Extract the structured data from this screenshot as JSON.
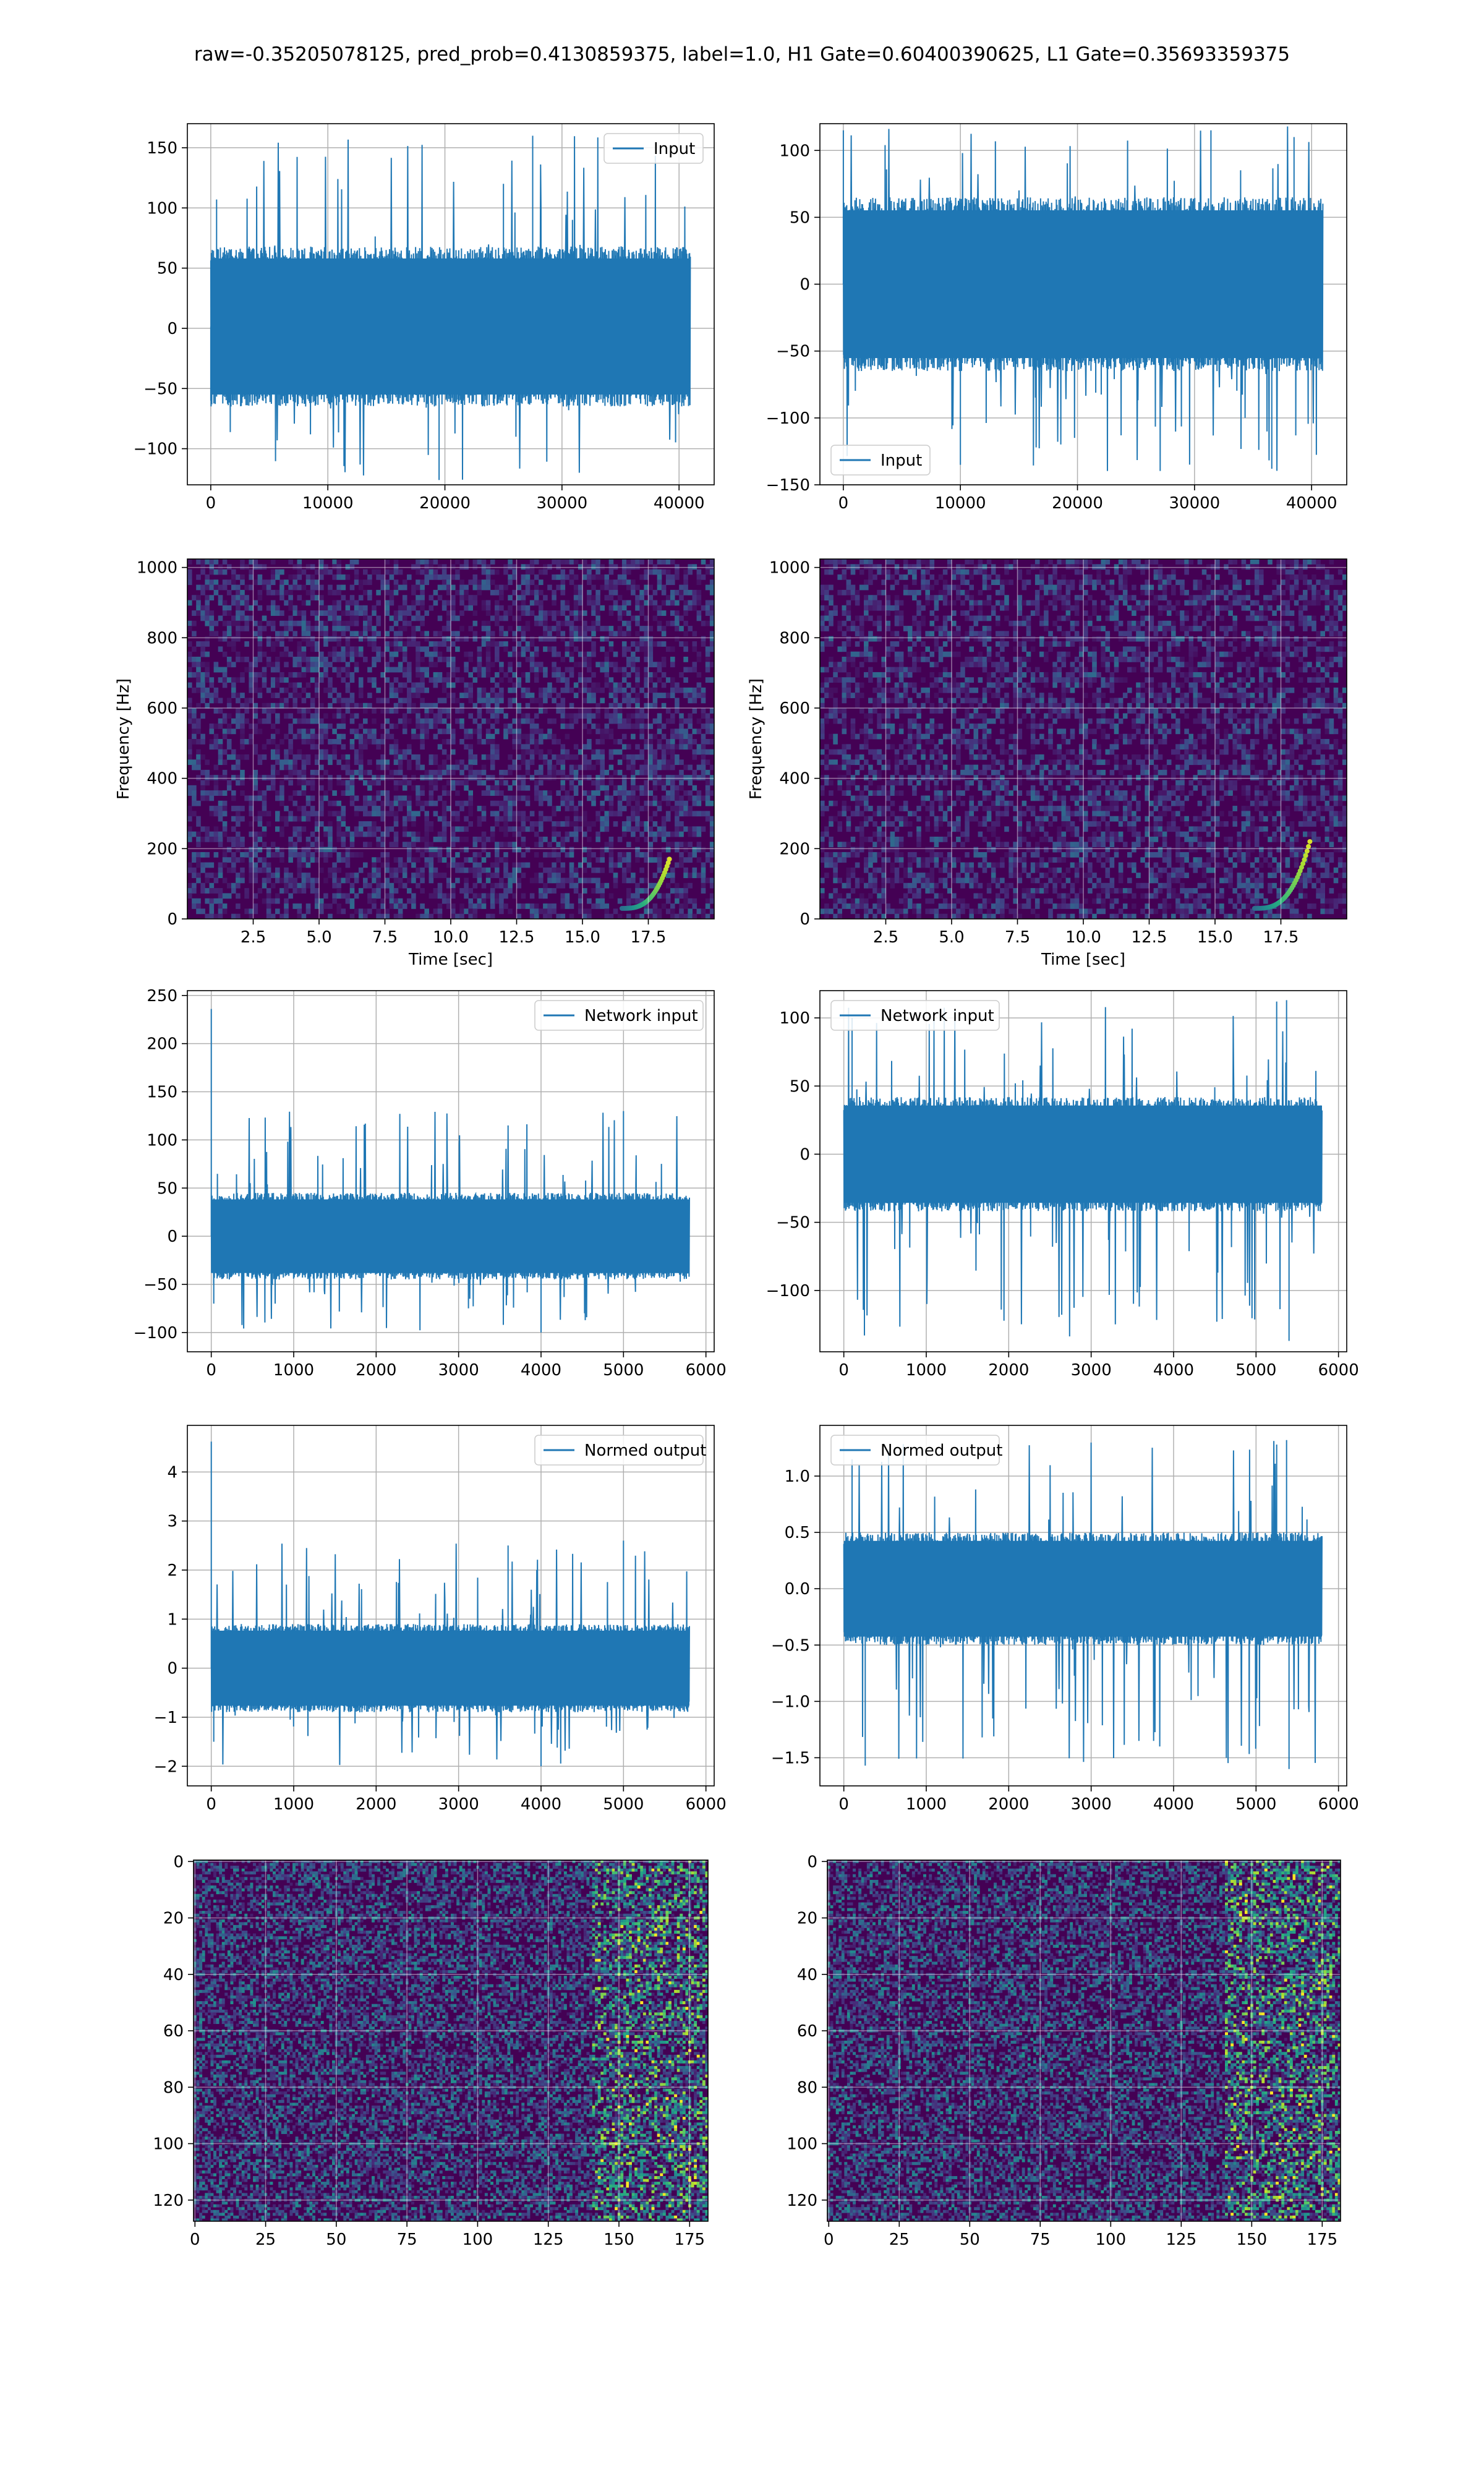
{
  "figure_title": "raw=-0.35205078125, pred_prob=0.4130859375, label=1.0, H1 Gate=0.60400390625, L1 Gate=0.35693359375",
  "colors": {
    "line": "#1f77b4",
    "grid": "#b0b0b0",
    "viridis": [
      "#440154",
      "#472c7a",
      "#3b518b",
      "#2c718e",
      "#21908d",
      "#27ad81",
      "#5cc863",
      "#aadc32",
      "#fde725"
    ]
  },
  "chart_data": [
    {
      "id": "input-h1",
      "type": "line",
      "xlim": [
        -2000,
        43000
      ],
      "ylim": [
        -130,
        170
      ],
      "xticks": [
        0,
        10000,
        20000,
        30000,
        40000
      ],
      "yticks": [
        -100,
        -50,
        0,
        50,
        100,
        150
      ],
      "legend": "Input",
      "legend_placement": "upper-right",
      "grid": true,
      "x_extent": [
        0,
        40960
      ],
      "band": [
        -65,
        68
      ],
      "spike_range": [
        -128,
        160
      ],
      "spikes": [
        [
          27500,
          160
        ],
        [
          19500,
          -126
        ],
        [
          25000,
          120
        ],
        [
          0,
          -60
        ],
        [
          500,
          107
        ]
      ]
    },
    {
      "id": "input-l1",
      "type": "line",
      "xlim": [
        -2000,
        43000
      ],
      "ylim": [
        -150,
        120
      ],
      "xticks": [
        0,
        10000,
        20000,
        30000,
        40000
      ],
      "yticks": [
        -150,
        -100,
        -50,
        0,
        50,
        100
      ],
      "legend": "Input",
      "legend_placement": "lower-left",
      "grid": true,
      "x_extent": [
        0,
        40960
      ],
      "band": [
        -65,
        65
      ],
      "spike_range": [
        -140,
        118
      ],
      "spikes": [
        [
          36600,
          -138
        ],
        [
          31400,
          115
        ],
        [
          10000,
          -135
        ],
        [
          0,
          115
        ],
        [
          38500,
          110
        ]
      ]
    },
    {
      "id": "spectrogram-h1",
      "type": "heatmap",
      "xlim": [
        0,
        20
      ],
      "ylim": [
        0,
        1024
      ],
      "xticks": [
        2.5,
        5.0,
        7.5,
        10.0,
        12.5,
        15.0,
        17.5
      ],
      "yticks": [
        0,
        200,
        400,
        600,
        800,
        1000
      ],
      "xlabel": "Time [sec]",
      "ylabel": "Frequency [Hz]",
      "grid": true,
      "chirp": {
        "t0": 16.5,
        "t1": 18.3,
        "f0": 30,
        "f1": 170
      }
    },
    {
      "id": "spectrogram-l1",
      "type": "heatmap",
      "xlim": [
        0,
        20
      ],
      "ylim": [
        0,
        1024
      ],
      "xticks": [
        2.5,
        5.0,
        7.5,
        10.0,
        12.5,
        15.0,
        17.5
      ],
      "yticks": [
        0,
        200,
        400,
        600,
        800,
        1000
      ],
      "xlabel": "Time [sec]",
      "ylabel": "Frequency [Hz]",
      "grid": true,
      "chirp": {
        "t0": 16.5,
        "t1": 18.6,
        "f0": 30,
        "f1": 220
      }
    },
    {
      "id": "network-input-h1",
      "type": "line",
      "xlim": [
        -290,
        6100
      ],
      "ylim": [
        -120,
        255
      ],
      "xticks": [
        0,
        1000,
        2000,
        3000,
        4000,
        5000,
        6000
      ],
      "yticks": [
        -100,
        -50,
        0,
        50,
        100,
        150,
        200,
        250
      ],
      "legend": "Network input",
      "legend_placement": "upper-right",
      "grid": true,
      "x_extent": [
        0,
        5800
      ],
      "band": [
        -45,
        45
      ],
      "spike_range": [
        -100,
        130
      ],
      "spikes": [
        [
          0,
          236
        ],
        [
          30,
          -70
        ],
        [
          5000,
          130
        ],
        [
          3600,
          115
        ],
        [
          4000,
          -100
        ]
      ]
    },
    {
      "id": "network-input-l1",
      "type": "line",
      "xlim": [
        -290,
        6100
      ],
      "ylim": [
        -145,
        120
      ],
      "xticks": [
        0,
        1000,
        2000,
        3000,
        4000,
        5000,
        6000
      ],
      "yticks": [
        -100,
        -50,
        0,
        50,
        100
      ],
      "legend": "Network input",
      "legend_placement": "upper-left",
      "grid": true,
      "x_extent": [
        0,
        5800
      ],
      "band": [
        -42,
        42
      ],
      "spike_range": [
        -135,
        112
      ],
      "spikes": [
        [
          250,
          -133
        ],
        [
          5400,
          -137
        ],
        [
          5370,
          113
        ],
        [
          5250,
          112
        ],
        [
          100,
          100
        ]
      ]
    },
    {
      "id": "normed-output-h1",
      "type": "line",
      "xlim": [
        -290,
        6100
      ],
      "ylim": [
        -2.4,
        4.95
      ],
      "xticks": [
        0,
        1000,
        2000,
        3000,
        4000,
        5000,
        6000
      ],
      "yticks": [
        -2,
        -1,
        0,
        1,
        2,
        3,
        4
      ],
      "legend": "Normed output",
      "legend_placement": "upper-right",
      "grid": true,
      "x_extent": [
        0,
        5800
      ],
      "band": [
        -0.9,
        0.9
      ],
      "spike_range": [
        -2.0,
        2.6
      ],
      "spikes": [
        [
          0,
          4.62
        ],
        [
          30,
          -1.5
        ],
        [
          5000,
          2.6
        ],
        [
          3600,
          2.5
        ],
        [
          4000,
          -2.0
        ]
      ]
    },
    {
      "id": "normed-output-l1",
      "type": "line",
      "xlim": [
        -290,
        6100
      ],
      "ylim": [
        -1.75,
        1.45
      ],
      "xticks": [
        0,
        1000,
        2000,
        3000,
        4000,
        5000,
        6000
      ],
      "yticks": [
        -1.5,
        -1.0,
        -0.5,
        0.0,
        0.5,
        1.0
      ],
      "legend": "Normed output",
      "legend_placement": "upper-left",
      "grid": true,
      "x_extent": [
        0,
        5800
      ],
      "band": [
        -0.5,
        0.5
      ],
      "spike_range": [
        -1.6,
        1.32
      ],
      "spikes": [
        [
          260,
          -1.57
        ],
        [
          5400,
          -1.6
        ],
        [
          5370,
          1.32
        ],
        [
          5250,
          1.28
        ],
        [
          100,
          1.15
        ]
      ]
    },
    {
      "id": "qtransform-h1",
      "type": "heatmap",
      "xlim": [
        -0.5,
        181.5
      ],
      "ylim": [
        127.5,
        -0.5
      ],
      "xticks": [
        0,
        25,
        50,
        75,
        100,
        125,
        150,
        175
      ],
      "yticks": [
        0,
        20,
        40,
        60,
        80,
        100,
        120
      ],
      "grid": true,
      "bright_from": 140
    },
    {
      "id": "qtransform-l1",
      "type": "heatmap",
      "xlim": [
        -0.5,
        181.5
      ],
      "ylim": [
        127.5,
        -0.5
      ],
      "xticks": [
        0,
        25,
        50,
        75,
        100,
        125,
        150,
        175
      ],
      "yticks": [
        0,
        20,
        40,
        60,
        80,
        100,
        120
      ],
      "grid": true,
      "bright_from": 140
    }
  ]
}
